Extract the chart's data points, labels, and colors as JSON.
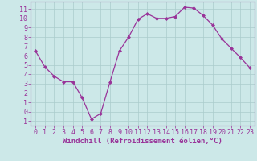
{
  "x": [
    0,
    1,
    2,
    3,
    4,
    5,
    6,
    7,
    8,
    9,
    10,
    11,
    12,
    13,
    14,
    15,
    16,
    17,
    18,
    19,
    20,
    21,
    22,
    23
  ],
  "y": [
    6.5,
    4.8,
    3.8,
    3.2,
    3.2,
    1.5,
    -0.8,
    -0.2,
    3.2,
    6.5,
    8.0,
    9.9,
    10.5,
    10.0,
    10.0,
    10.2,
    11.2,
    11.1,
    10.3,
    9.3,
    7.8,
    6.8,
    5.8,
    4.7
  ],
  "line_color": "#993399",
  "marker": "D",
  "marker_size": 2,
  "bg_color": "#cce8e8",
  "grid_color": "#aacccc",
  "xlabel": "Windchill (Refroidissement éolien,°C)",
  "xlabel_color": "#993399",
  "tick_color": "#993399",
  "ylim": [
    -1.5,
    11.8
  ],
  "xlim": [
    -0.5,
    23.5
  ],
  "yticks": [
    -1,
    0,
    1,
    2,
    3,
    4,
    5,
    6,
    7,
    8,
    9,
    10,
    11
  ],
  "xticks": [
    0,
    1,
    2,
    3,
    4,
    5,
    6,
    7,
    8,
    9,
    10,
    11,
    12,
    13,
    14,
    15,
    16,
    17,
    18,
    19,
    20,
    21,
    22,
    23
  ],
  "tick_fontsize": 6,
  "xlabel_fontsize": 6.5
}
